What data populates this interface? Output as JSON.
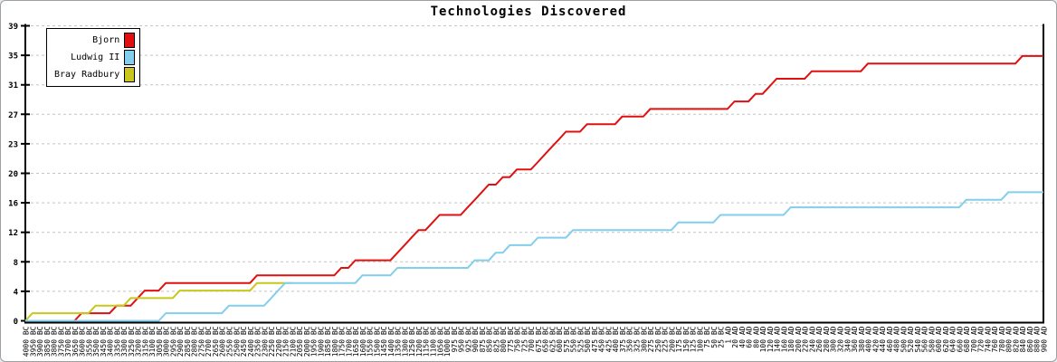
{
  "chart_data": {
    "type": "line",
    "title": "Technologies Discovered",
    "legend_position": "top-left",
    "grid": true,
    "y_axis": {
      "min": 0,
      "max": 39,
      "tick_values": [
        0,
        3.9,
        7.8,
        11.7,
        15.6,
        19.5,
        23.4,
        27.3,
        31.2,
        35.1,
        39
      ],
      "tick_labels": [
        "0",
        "4",
        "8",
        "12",
        "16",
        "20",
        "23",
        "27",
        "31",
        "35",
        "39"
      ]
    },
    "x_axis": {
      "labels": [
        "4000 BC",
        "3950 BC",
        "3900 BC",
        "3850 BC",
        "3800 BC",
        "3750 BC",
        "3700 BC",
        "3650 BC",
        "3600 BC",
        "3550 BC",
        "3500 BC",
        "3450 BC",
        "3400 BC",
        "3350 BC",
        "3300 BC",
        "3250 BC",
        "3200 BC",
        "3150 BC",
        "3100 BC",
        "3050 BC",
        "3000 BC",
        "2950 BC",
        "2900 BC",
        "2850 BC",
        "2800 BC",
        "2750 BC",
        "2700 BC",
        "2650 BC",
        "2600 BC",
        "2550 BC",
        "2500 BC",
        "2450 BC",
        "2400 BC",
        "2350 BC",
        "2300 BC",
        "2250 BC",
        "2200 BC",
        "2150 BC",
        "2100 BC",
        "2050 BC",
        "2000 BC",
        "1950 BC",
        "1900 BC",
        "1850 BC",
        "1800 BC",
        "1750 BC",
        "1700 BC",
        "1650 BC",
        "1600 BC",
        "1550 BC",
        "1500 BC",
        "1450 BC",
        "1400 BC",
        "1350 BC",
        "1300 BC",
        "1250 BC",
        "1200 BC",
        "1150 BC",
        "1100 BC",
        "1050 BC",
        "1000 BC",
        "975 BC",
        "950 BC",
        "925 BC",
        "900 BC",
        "875 BC",
        "850 BC",
        "825 BC",
        "800 BC",
        "775 BC",
        "750 BC",
        "725 BC",
        "700 BC",
        "675 BC",
        "650 BC",
        "625 BC",
        "600 BC",
        "575 BC",
        "550 BC",
        "525 BC",
        "500 BC",
        "475 BC",
        "450 BC",
        "425 BC",
        "400 BC",
        "375 BC",
        "350 BC",
        "325 BC",
        "300 BC",
        "275 BC",
        "250 BC",
        "225 BC",
        "200 BC",
        "175 BC",
        "150 BC",
        "125 BC",
        "100 BC",
        "75 BC",
        "50 BC",
        "25 BC",
        "1 AD",
        "20 AD",
        "40 AD",
        "60 AD",
        "80 AD",
        "100 AD",
        "120 AD",
        "140 AD",
        "160 AD",
        "180 AD",
        "200 AD",
        "220 AD",
        "240 AD",
        "260 AD",
        "280 AD",
        "300 AD",
        "320 AD",
        "340 AD",
        "360 AD",
        "380 AD",
        "400 AD",
        "420 AD",
        "440 AD",
        "460 AD",
        "480 AD",
        "500 AD",
        "520 AD",
        "540 AD",
        "560 AD",
        "580 AD",
        "600 AD",
        "620 AD",
        "640 AD",
        "660 AD",
        "680 AD",
        "700 AD",
        "720 AD",
        "740 AD",
        "760 AD",
        "780 AD",
        "800 AD",
        "820 AD",
        "840 AD",
        "860 AD",
        "880 AD",
        "900 AD"
      ]
    },
    "series": [
      {
        "name": "Bjorn",
        "color": "#e01010",
        "end_index": 145,
        "breakpoints": [
          [
            0,
            0
          ],
          [
            8,
            1
          ],
          [
            13,
            2
          ],
          [
            16,
            3
          ],
          [
            17,
            4
          ],
          [
            20,
            5
          ],
          [
            33,
            6
          ],
          [
            45,
            7
          ],
          [
            47,
            8
          ],
          [
            53,
            9
          ],
          [
            54,
            10
          ],
          [
            55,
            11
          ],
          [
            56,
            12
          ],
          [
            58,
            13
          ],
          [
            59,
            14
          ],
          [
            63,
            15
          ],
          [
            64,
            16
          ],
          [
            65,
            17
          ],
          [
            66,
            18
          ],
          [
            68,
            19
          ],
          [
            70,
            20
          ],
          [
            73,
            21
          ],
          [
            74,
            22
          ],
          [
            75,
            23
          ],
          [
            76,
            24
          ],
          [
            77,
            25
          ],
          [
            80,
            26
          ],
          [
            85,
            27
          ],
          [
            89,
            28
          ],
          [
            101,
            29
          ],
          [
            104,
            30
          ],
          [
            106,
            31
          ],
          [
            107,
            32
          ],
          [
            112,
            33
          ],
          [
            120,
            34
          ],
          [
            142,
            35
          ]
        ]
      },
      {
        "name": "Ludwig II",
        "color": "#82ceec",
        "end_index": 145,
        "breakpoints": [
          [
            0,
            0
          ],
          [
            20,
            1
          ],
          [
            29,
            2
          ],
          [
            35,
            3
          ],
          [
            36,
            4
          ],
          [
            37,
            5
          ],
          [
            48,
            6
          ],
          [
            53,
            7
          ],
          [
            64,
            8
          ],
          [
            67,
            9
          ],
          [
            69,
            10
          ],
          [
            73,
            11
          ],
          [
            78,
            12
          ],
          [
            93,
            13
          ],
          [
            99,
            14
          ],
          [
            109,
            15
          ],
          [
            134,
            16
          ],
          [
            140,
            17
          ]
        ]
      },
      {
        "name": "Bray Radbury",
        "color": "#c9c71c",
        "end_index": 38,
        "breakpoints": [
          [
            0,
            0
          ],
          [
            1,
            1
          ],
          [
            10,
            2
          ],
          [
            15,
            3
          ],
          [
            22,
            4
          ],
          [
            33,
            5
          ]
        ]
      }
    ]
  },
  "colors": {
    "axis": "#000000",
    "grid": "#c4c4c4",
    "text": "#000000",
    "background": "#ffffff"
  }
}
